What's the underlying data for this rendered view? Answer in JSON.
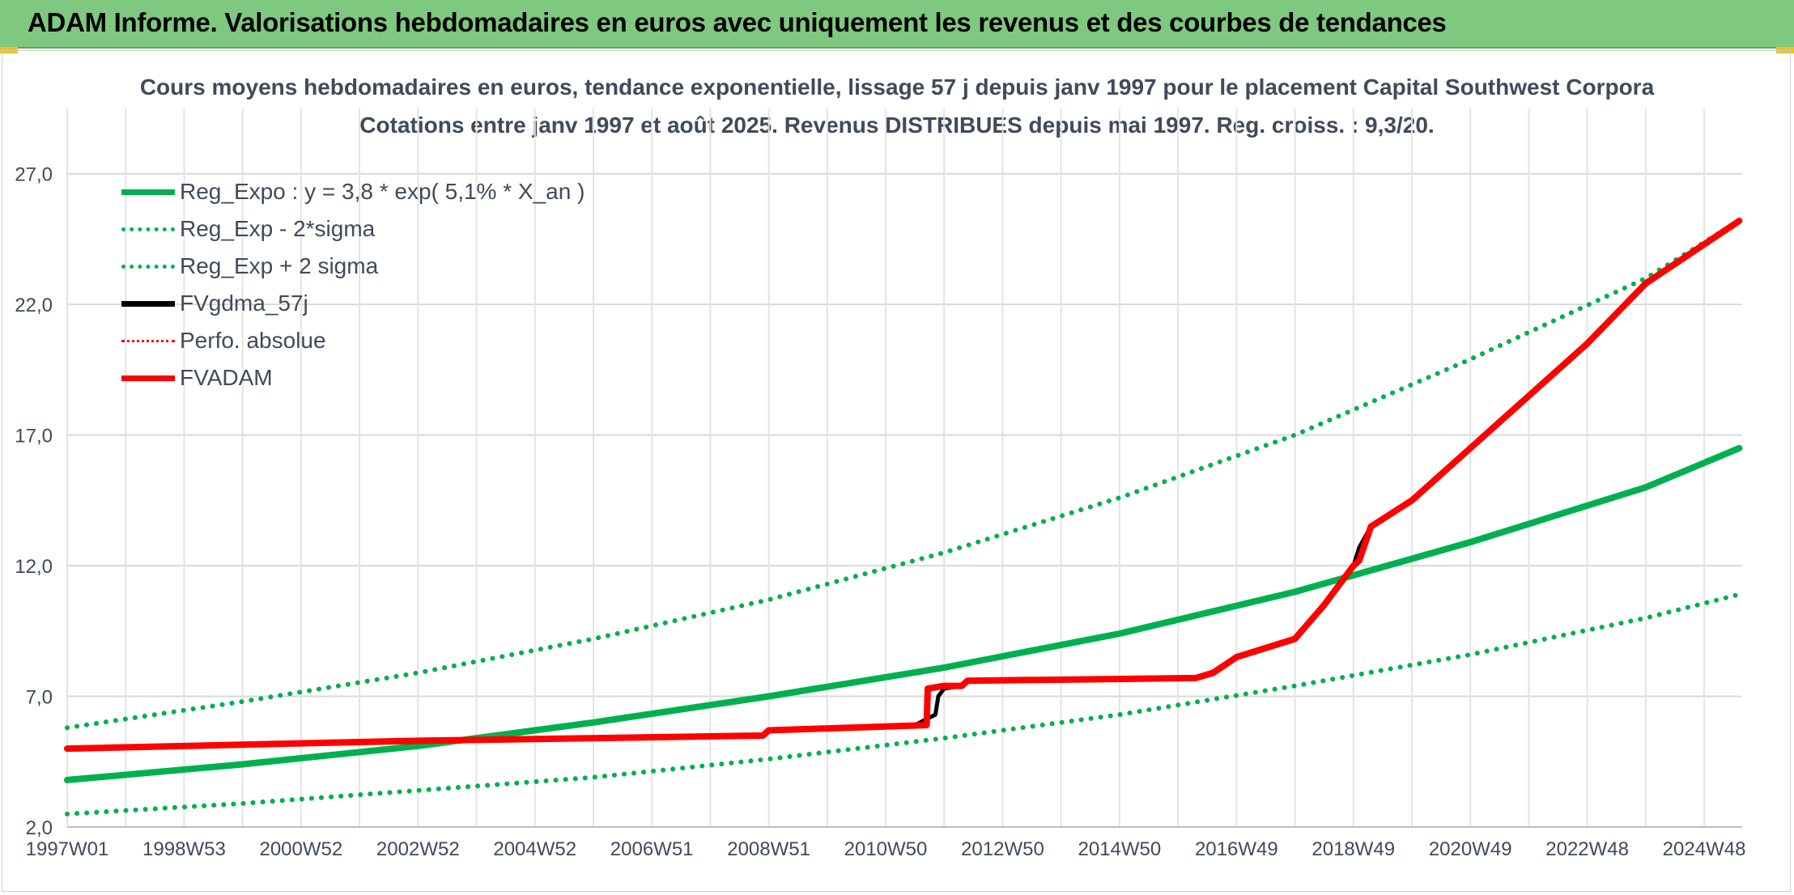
{
  "header": {
    "title": "ADAM Informe. Valorisations hebdomadaires en euros avec uniquement les revenus et des courbes de tendances"
  },
  "colors": {
    "header_bg": "#7fc87f",
    "green": "#00b050",
    "black": "#000000",
    "red": "#ff0000",
    "text": "#404a5a",
    "grid": "#d9d9d9"
  },
  "chart_data": {
    "type": "line",
    "title_lines": [
      "Cours moyens hebdomadaires en euros, tendance exponentielle, lissage 57 j depuis janv 1997 pour le placement Capital Southwest Corpora",
      "Cotations entre janv 1997 et août 2025. Revenus DISTRIBUES depuis mai 1997. Reg. croiss. : 9,3/20."
    ],
    "xlabel": "",
    "ylabel": "",
    "ylim": [
      2.0,
      29.5
    ],
    "xlim": [
      1997.0,
      2025.65
    ],
    "yticks": [
      2.0,
      7.0,
      12.0,
      17.0,
      22.0,
      27.0
    ],
    "ytick_labels": [
      "2,0",
      "7,0",
      "12,0",
      "17,0",
      "22,0",
      "27,0"
    ],
    "xticks": [
      1997.0,
      1999.0,
      2001.0,
      2003.0,
      2005.0,
      2007.0,
      2009.0,
      2011.0,
      2013.0,
      2015.0,
      2017.0,
      2019.0,
      2021.0,
      2023.0,
      2025.0
    ],
    "xtick_labels": [
      "1997W01",
      "1998W53",
      "2000W52",
      "2002W52",
      "2004W52",
      "2006W51",
      "2008W51",
      "2010W50",
      "2012W50",
      "2014W50",
      "2016W49",
      "2018W49",
      "2020W49",
      "2022W48",
      "2024W48"
    ],
    "grid": true,
    "legend_position": "top-left",
    "series": [
      {
        "name": "Reg_Expo : y = 3,8 * exp( 5,1% *  X_an )",
        "style": "solid-thick",
        "color": "#00b050",
        "x": [
          1997.0,
          2000.0,
          2003.0,
          2006.0,
          2009.0,
          2012.0,
          2015.0,
          2018.0,
          2021.0,
          2024.0,
          2025.6
        ],
        "y": [
          3.8,
          4.4,
          5.1,
          6.0,
          7.0,
          8.1,
          9.4,
          11.0,
          12.9,
          15.0,
          16.5
        ]
      },
      {
        "name": "Reg_Exp - 2*sigma",
        "style": "dotted",
        "color": "#00b050",
        "x": [
          1997.0,
          2000.0,
          2003.0,
          2006.0,
          2009.0,
          2012.0,
          2015.0,
          2018.0,
          2021.0,
          2024.0,
          2025.6
        ],
        "y": [
          2.5,
          2.9,
          3.4,
          3.9,
          4.6,
          5.4,
          6.3,
          7.4,
          8.6,
          10.0,
          10.9
        ]
      },
      {
        "name": "Reg_Exp + 2 sigma",
        "style": "dotted",
        "color": "#00b050",
        "x": [
          1997.0,
          2000.0,
          2003.0,
          2006.0,
          2009.0,
          2012.0,
          2015.0,
          2018.0,
          2021.0,
          2024.0,
          2025.6
        ],
        "y": [
          5.8,
          6.8,
          7.9,
          9.2,
          10.7,
          12.5,
          14.6,
          17.0,
          19.9,
          23.0,
          25.2
        ]
      },
      {
        "name": "FVgdma_57j",
        "style": "solid",
        "color": "#000000",
        "x": [
          1997.0,
          2003.0,
          2008.9,
          2009.0,
          2011.5,
          2011.85,
          2011.9,
          2012.0,
          2012.3,
          2012.4,
          2016.3,
          2016.6,
          2017.0,
          2018.0,
          2018.5,
          2019.0,
          2019.1,
          2019.3,
          2020.0,
          2021.0,
          2022.0,
          2023.0,
          2024.0,
          2025.6
        ],
        "y": [
          5.0,
          5.3,
          5.5,
          5.7,
          5.9,
          6.3,
          7.0,
          7.3,
          7.4,
          7.6,
          7.7,
          7.9,
          8.5,
          9.2,
          10.5,
          12.0,
          12.7,
          13.5,
          14.5,
          16.5,
          18.5,
          20.5,
          22.8,
          25.2
        ]
      },
      {
        "name": "Perfo. absolue",
        "style": "dotted-thin",
        "color": "#ff0000",
        "x": [],
        "y": []
      },
      {
        "name": "FVADAM",
        "style": "solid-thick",
        "color": "#ff0000",
        "x": [
          1997.0,
          2003.0,
          2008.9,
          2009.0,
          2011.7,
          2011.72,
          2012.0,
          2012.3,
          2012.4,
          2016.3,
          2016.6,
          2017.0,
          2018.0,
          2018.5,
          2019.0,
          2019.1,
          2019.3,
          2020.0,
          2021.0,
          2022.0,
          2023.0,
          2024.0,
          2025.6
        ],
        "y": [
          5.0,
          5.3,
          5.5,
          5.7,
          5.9,
          7.3,
          7.4,
          7.4,
          7.6,
          7.7,
          7.9,
          8.5,
          9.2,
          10.5,
          12.0,
          12.2,
          13.5,
          14.5,
          16.5,
          18.5,
          20.5,
          22.8,
          25.2
        ]
      }
    ]
  }
}
